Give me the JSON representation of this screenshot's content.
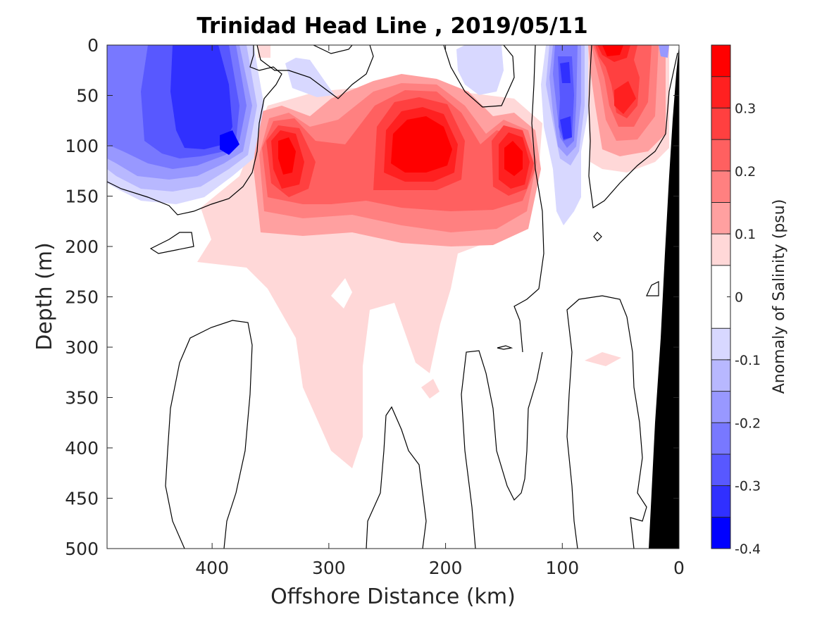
{
  "chart_data": {
    "type": "heatmap",
    "subtype": "filled-contour",
    "title": "Trinidad Head Line , 2019/05/11",
    "xlabel": "Offshore Distance (km)",
    "ylabel": "Depth (m)",
    "xlim": [
      490,
      0
    ],
    "ylim": [
      0,
      500
    ],
    "x_reversed": true,
    "y_reversed": true,
    "x_ticks": [
      400,
      300,
      200,
      100,
      0
    ],
    "y_ticks": [
      0,
      50,
      100,
      150,
      200,
      250,
      300,
      350,
      400,
      450,
      500
    ],
    "colorbar": {
      "label": "Anomaly of Salinity (psu)",
      "range": [
        -0.4,
        0.4
      ],
      "ticks": [
        0.3,
        0.2,
        0.1,
        0,
        -0.1,
        -0.2,
        -0.3,
        -0.4
      ],
      "levels": [
        {
          "lo": 0.35,
          "hi": 0.4,
          "color": "#ff0000"
        },
        {
          "lo": 0.3,
          "hi": 0.35,
          "color": "#ff2020"
        },
        {
          "lo": 0.25,
          "hi": 0.3,
          "color": "#ff4040"
        },
        {
          "lo": 0.2,
          "hi": 0.25,
          "color": "#ff6060"
        },
        {
          "lo": 0.15,
          "hi": 0.2,
          "color": "#ff8080"
        },
        {
          "lo": 0.1,
          "hi": 0.15,
          "color": "#ffa0a0"
        },
        {
          "lo": 0.05,
          "hi": 0.1,
          "color": "#ffd8d8"
        },
        {
          "lo": -0.05,
          "hi": 0.05,
          "color": "#ffffff"
        },
        {
          "lo": -0.1,
          "hi": -0.05,
          "color": "#d8d8ff"
        },
        {
          "lo": -0.15,
          "hi": -0.1,
          "color": "#b8b8ff"
        },
        {
          "lo": -0.2,
          "hi": -0.15,
          "color": "#9898ff"
        },
        {
          "lo": -0.25,
          "hi": -0.2,
          "color": "#7878ff"
        },
        {
          "lo": -0.3,
          "hi": -0.25,
          "color": "#5858ff"
        },
        {
          "lo": -0.35,
          "hi": -0.3,
          "color": "#3030ff"
        },
        {
          "lo": -0.4,
          "hi": -0.35,
          "color": "#0000ff"
        }
      ]
    },
    "features": [
      {
        "name": "nearshore-fresh-anomaly",
        "x_range": [
          490,
          360
        ],
        "depth_range": [
          0,
          170
        ],
        "min_value": -0.3
      },
      {
        "name": "salty-core-340km",
        "center": [
          335,
          110
        ],
        "max_value": 0.35
      },
      {
        "name": "salty-core-220km",
        "center": [
          225,
          100
        ],
        "max_value": 0.4
      },
      {
        "name": "salty-core-140km",
        "center": [
          140,
          110
        ],
        "max_value": 0.35
      },
      {
        "name": "fresh-filament-100km",
        "center": [
          100,
          80
        ],
        "min_value": -0.3
      },
      {
        "name": "salty-core-50km",
        "center": [
          50,
          60
        ],
        "max_value": 0.35
      },
      {
        "name": "weak-salty-plume",
        "x_range": [
          360,
          200
        ],
        "depth_range": [
          150,
          420
        ],
        "value": 0.075
      }
    ],
    "seafloor_color": "#000000",
    "grid": false
  }
}
